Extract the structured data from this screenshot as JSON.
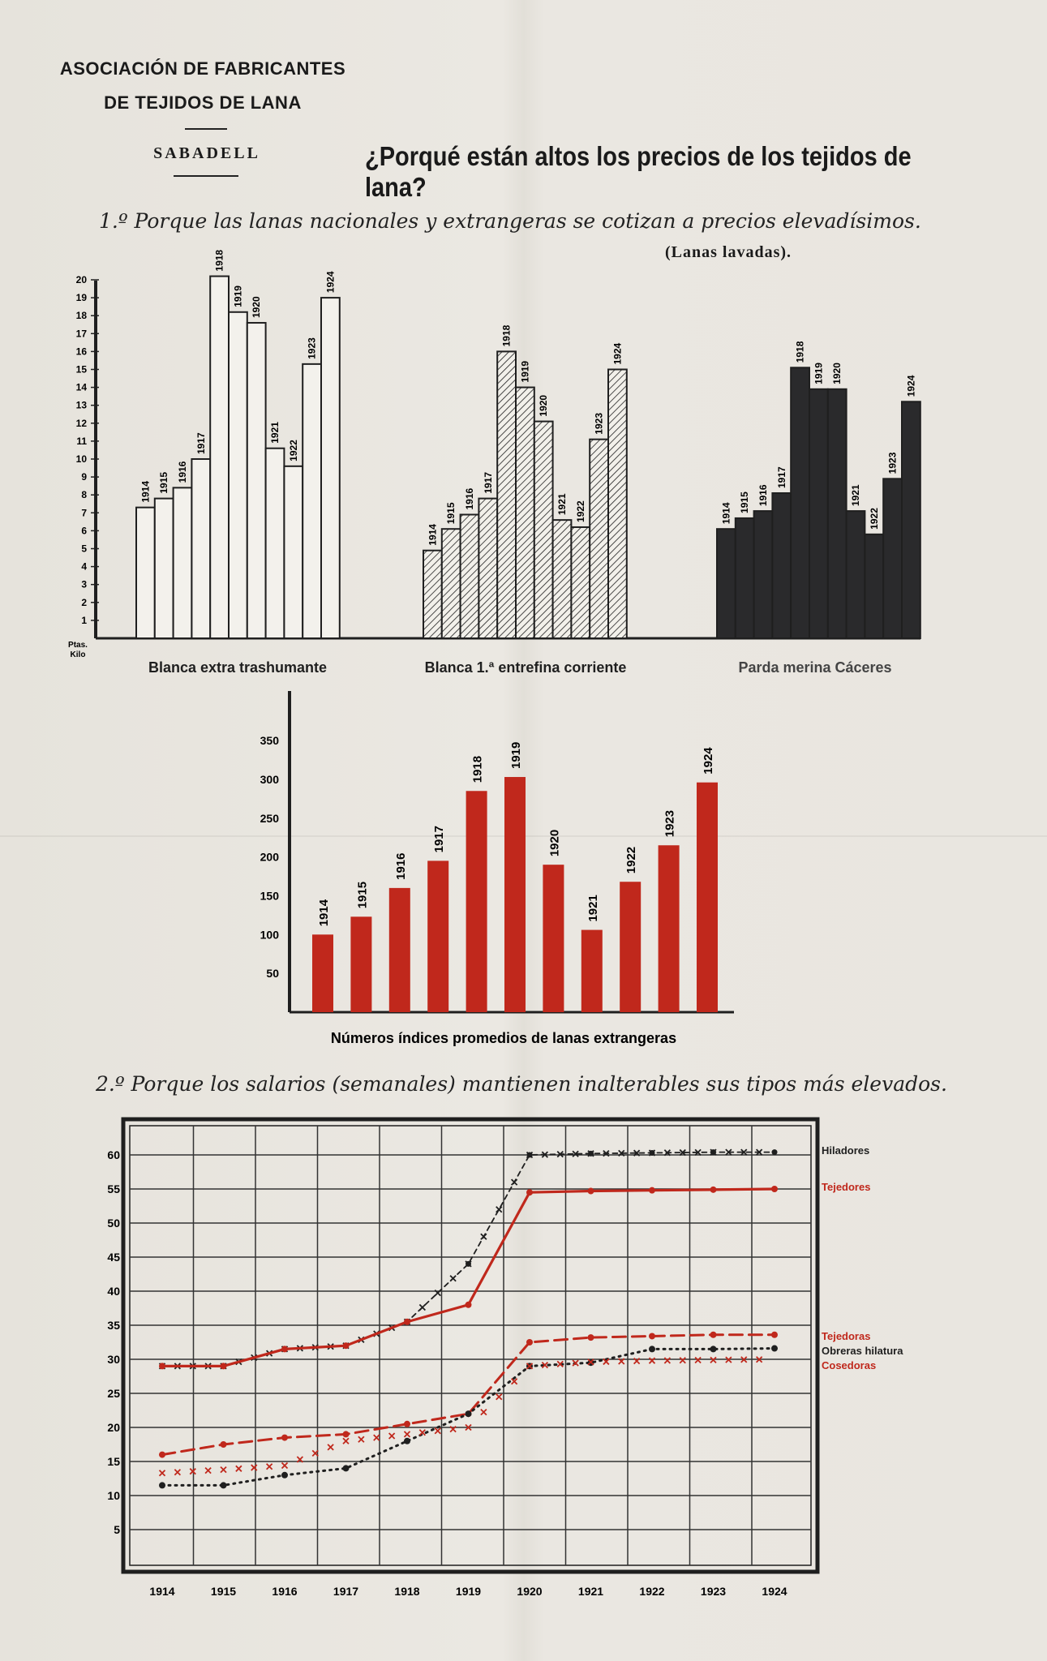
{
  "header": {
    "org_line1": "ASOCIACIÓN DE FABRICANTES",
    "org_line2": "DE TEJIDOS DE LANA",
    "city": "SABADELL",
    "title": "¿Porqué están altos los precios de los tejidos de lana?"
  },
  "section1": {
    "heading": "1.º Porque las lanas nacionales y extrangeras se cotizan a precios elevadísimos.",
    "note": "(Lanas lavadas)."
  },
  "section2": {
    "heading": "2.º Porque los salarios (semanales) mantienen inalterables sus tipos más elevados."
  },
  "colors": {
    "ink": "#1f1f1f",
    "red": "#c0281c",
    "dark_bar": "#2a2a2c"
  },
  "chart_data": [
    {
      "type": "bar",
      "title": "Blanca extra trashumante",
      "ylabel": "Ptas. Kilo",
      "yticks": [
        1,
        2,
        3,
        4,
        5,
        6,
        7,
        8,
        9,
        10,
        11,
        12,
        13,
        14,
        15,
        16,
        17,
        18,
        19,
        20
      ],
      "ylim": [
        0,
        20
      ],
      "categories": [
        "1914",
        "1915",
        "1916",
        "1917",
        "1918",
        "1919",
        "1920",
        "1921",
        "1922",
        "1923",
        "1924"
      ],
      "values": [
        7.3,
        7.8,
        8.4,
        10.0,
        20.2,
        18.2,
        17.6,
        10.6,
        9.6,
        15.3,
        19.0
      ],
      "style": "white"
    },
    {
      "type": "bar",
      "title": "Blanca 1.ª entrefina corriente",
      "ylim": [
        0,
        20
      ],
      "categories": [
        "1914",
        "1915",
        "1916",
        "1917",
        "1918",
        "1919",
        "1920",
        "1921",
        "1922",
        "1923",
        "1924"
      ],
      "values": [
        4.9,
        6.1,
        6.9,
        7.8,
        16.0,
        14.0,
        12.1,
        6.6,
        6.2,
        11.1,
        15.0
      ],
      "style": "hatched"
    },
    {
      "type": "bar",
      "title": "Parda merina Cáceres",
      "ylim": [
        0,
        20
      ],
      "categories": [
        "1914",
        "1915",
        "1916",
        "1917",
        "1918",
        "1919",
        "1920",
        "1921",
        "1922",
        "1923",
        "1924"
      ],
      "values": [
        6.1,
        6.7,
        7.1,
        8.1,
        15.1,
        13.9,
        13.9,
        7.1,
        5.8,
        8.9,
        13.2
      ],
      "style": "dark"
    },
    {
      "type": "bar",
      "title": "Números índices promedios de lanas extrangeras",
      "yticks": [
        50,
        100,
        150,
        200,
        250,
        300,
        350
      ],
      "ylim": [
        0,
        400
      ],
      "categories": [
        "1914",
        "1915",
        "1916",
        "1917",
        "1918",
        "1919",
        "1920",
        "1921",
        "1922",
        "1923",
        "1924"
      ],
      "values": [
        100,
        123,
        160,
        195,
        285,
        303,
        190,
        106,
        168,
        215,
        296
      ],
      "style": "red"
    },
    {
      "type": "line",
      "x": [
        "1914",
        "1915",
        "1916",
        "1917",
        "1918",
        "1919",
        "1920",
        "1921",
        "1922",
        "1923",
        "1924"
      ],
      "yticks": [
        5,
        10,
        15,
        20,
        25,
        30,
        35,
        40,
        45,
        50,
        55,
        60
      ],
      "ylim": [
        0,
        64
      ],
      "grid": true,
      "series": [
        {
          "name": "Hiladores",
          "style": "dashed-x",
          "color": "#1f1f1f",
          "values": [
            29,
            29,
            31.5,
            32,
            35.5,
            44,
            60,
            60.2,
            60.3,
            60.4,
            60.4
          ]
        },
        {
          "name": "Tejedores",
          "style": "solid",
          "color": "#c0281c",
          "values": [
            29,
            29,
            31.5,
            32,
            35.5,
            38,
            54.5,
            54.7,
            54.8,
            54.9,
            55
          ]
        },
        {
          "name": "Tejedoras",
          "style": "dashed",
          "color": "#c0281c",
          "values": [
            16,
            17.5,
            18.5,
            19,
            20.5,
            22,
            32.5,
            33.2,
            33.4,
            33.6,
            33.6
          ]
        },
        {
          "name": "Obreras hilatura",
          "style": "dotted",
          "color": "#1f1f1f",
          "values": [
            11.5,
            11.5,
            13,
            14,
            18,
            22,
            29,
            29.5,
            31.5,
            31.5,
            31.6
          ]
        },
        {
          "name": "Cosedoras",
          "style": "x",
          "color": "#c0281c",
          "values": [
            13.3,
            13.8,
            14.4,
            18,
            19,
            20,
            29,
            29.6,
            29.8,
            29.9,
            30
          ]
        }
      ]
    }
  ]
}
